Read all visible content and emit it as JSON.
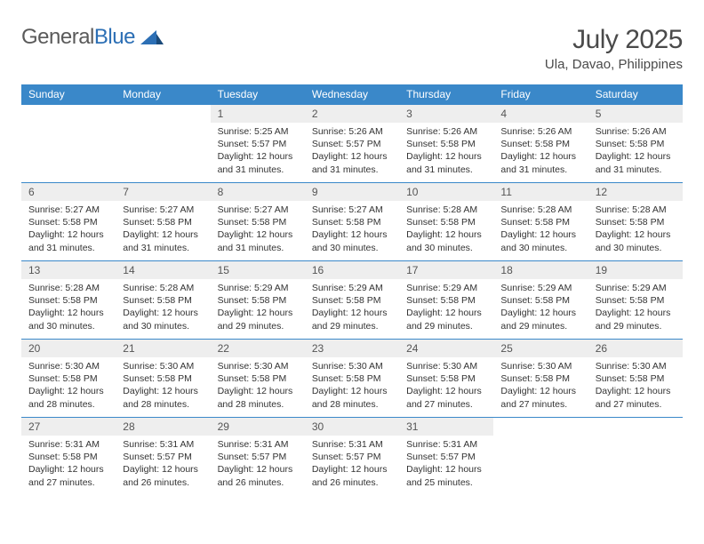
{
  "brand": {
    "part1": "General",
    "part2": "Blue"
  },
  "title": "July 2025",
  "location": "Ula, Davao, Philippines",
  "colors": {
    "header_bg": "#3a88c9",
    "header_fg": "#ffffff",
    "daynum_bg": "#eeeeee",
    "row_border": "#3a88c9",
    "text": "#333333",
    "brand_gray": "#5a5a5a",
    "brand_blue": "#2c6fb5",
    "page_bg": "#ffffff"
  },
  "typography": {
    "body_font": "Arial",
    "title_fontsize": 30,
    "location_fontsize": 15,
    "header_fontsize": 12,
    "daynum_fontsize": 12,
    "cell_fontsize": 10.5
  },
  "day_headers": [
    "Sunday",
    "Monday",
    "Tuesday",
    "Wednesday",
    "Thursday",
    "Friday",
    "Saturday"
  ],
  "weeks": [
    [
      {
        "n": "",
        "sr": "",
        "ss": "",
        "dl": ""
      },
      {
        "n": "",
        "sr": "",
        "ss": "",
        "dl": ""
      },
      {
        "n": "1",
        "sr": "Sunrise: 5:25 AM",
        "ss": "Sunset: 5:57 PM",
        "dl": "Daylight: 12 hours and 31 minutes."
      },
      {
        "n": "2",
        "sr": "Sunrise: 5:26 AM",
        "ss": "Sunset: 5:57 PM",
        "dl": "Daylight: 12 hours and 31 minutes."
      },
      {
        "n": "3",
        "sr": "Sunrise: 5:26 AM",
        "ss": "Sunset: 5:58 PM",
        "dl": "Daylight: 12 hours and 31 minutes."
      },
      {
        "n": "4",
        "sr": "Sunrise: 5:26 AM",
        "ss": "Sunset: 5:58 PM",
        "dl": "Daylight: 12 hours and 31 minutes."
      },
      {
        "n": "5",
        "sr": "Sunrise: 5:26 AM",
        "ss": "Sunset: 5:58 PM",
        "dl": "Daylight: 12 hours and 31 minutes."
      }
    ],
    [
      {
        "n": "6",
        "sr": "Sunrise: 5:27 AM",
        "ss": "Sunset: 5:58 PM",
        "dl": "Daylight: 12 hours and 31 minutes."
      },
      {
        "n": "7",
        "sr": "Sunrise: 5:27 AM",
        "ss": "Sunset: 5:58 PM",
        "dl": "Daylight: 12 hours and 31 minutes."
      },
      {
        "n": "8",
        "sr": "Sunrise: 5:27 AM",
        "ss": "Sunset: 5:58 PM",
        "dl": "Daylight: 12 hours and 31 minutes."
      },
      {
        "n": "9",
        "sr": "Sunrise: 5:27 AM",
        "ss": "Sunset: 5:58 PM",
        "dl": "Daylight: 12 hours and 30 minutes."
      },
      {
        "n": "10",
        "sr": "Sunrise: 5:28 AM",
        "ss": "Sunset: 5:58 PM",
        "dl": "Daylight: 12 hours and 30 minutes."
      },
      {
        "n": "11",
        "sr": "Sunrise: 5:28 AM",
        "ss": "Sunset: 5:58 PM",
        "dl": "Daylight: 12 hours and 30 minutes."
      },
      {
        "n": "12",
        "sr": "Sunrise: 5:28 AM",
        "ss": "Sunset: 5:58 PM",
        "dl": "Daylight: 12 hours and 30 minutes."
      }
    ],
    [
      {
        "n": "13",
        "sr": "Sunrise: 5:28 AM",
        "ss": "Sunset: 5:58 PM",
        "dl": "Daylight: 12 hours and 30 minutes."
      },
      {
        "n": "14",
        "sr": "Sunrise: 5:28 AM",
        "ss": "Sunset: 5:58 PM",
        "dl": "Daylight: 12 hours and 30 minutes."
      },
      {
        "n": "15",
        "sr": "Sunrise: 5:29 AM",
        "ss": "Sunset: 5:58 PM",
        "dl": "Daylight: 12 hours and 29 minutes."
      },
      {
        "n": "16",
        "sr": "Sunrise: 5:29 AM",
        "ss": "Sunset: 5:58 PM",
        "dl": "Daylight: 12 hours and 29 minutes."
      },
      {
        "n": "17",
        "sr": "Sunrise: 5:29 AM",
        "ss": "Sunset: 5:58 PM",
        "dl": "Daylight: 12 hours and 29 minutes."
      },
      {
        "n": "18",
        "sr": "Sunrise: 5:29 AM",
        "ss": "Sunset: 5:58 PM",
        "dl": "Daylight: 12 hours and 29 minutes."
      },
      {
        "n": "19",
        "sr": "Sunrise: 5:29 AM",
        "ss": "Sunset: 5:58 PM",
        "dl": "Daylight: 12 hours and 29 minutes."
      }
    ],
    [
      {
        "n": "20",
        "sr": "Sunrise: 5:30 AM",
        "ss": "Sunset: 5:58 PM",
        "dl": "Daylight: 12 hours and 28 minutes."
      },
      {
        "n": "21",
        "sr": "Sunrise: 5:30 AM",
        "ss": "Sunset: 5:58 PM",
        "dl": "Daylight: 12 hours and 28 minutes."
      },
      {
        "n": "22",
        "sr": "Sunrise: 5:30 AM",
        "ss": "Sunset: 5:58 PM",
        "dl": "Daylight: 12 hours and 28 minutes."
      },
      {
        "n": "23",
        "sr": "Sunrise: 5:30 AM",
        "ss": "Sunset: 5:58 PM",
        "dl": "Daylight: 12 hours and 28 minutes."
      },
      {
        "n": "24",
        "sr": "Sunrise: 5:30 AM",
        "ss": "Sunset: 5:58 PM",
        "dl": "Daylight: 12 hours and 27 minutes."
      },
      {
        "n": "25",
        "sr": "Sunrise: 5:30 AM",
        "ss": "Sunset: 5:58 PM",
        "dl": "Daylight: 12 hours and 27 minutes."
      },
      {
        "n": "26",
        "sr": "Sunrise: 5:30 AM",
        "ss": "Sunset: 5:58 PM",
        "dl": "Daylight: 12 hours and 27 minutes."
      }
    ],
    [
      {
        "n": "27",
        "sr": "Sunrise: 5:31 AM",
        "ss": "Sunset: 5:58 PM",
        "dl": "Daylight: 12 hours and 27 minutes."
      },
      {
        "n": "28",
        "sr": "Sunrise: 5:31 AM",
        "ss": "Sunset: 5:57 PM",
        "dl": "Daylight: 12 hours and 26 minutes."
      },
      {
        "n": "29",
        "sr": "Sunrise: 5:31 AM",
        "ss": "Sunset: 5:57 PM",
        "dl": "Daylight: 12 hours and 26 minutes."
      },
      {
        "n": "30",
        "sr": "Sunrise: 5:31 AM",
        "ss": "Sunset: 5:57 PM",
        "dl": "Daylight: 12 hours and 26 minutes."
      },
      {
        "n": "31",
        "sr": "Sunrise: 5:31 AM",
        "ss": "Sunset: 5:57 PM",
        "dl": "Daylight: 12 hours and 25 minutes."
      },
      {
        "n": "",
        "sr": "",
        "ss": "",
        "dl": ""
      },
      {
        "n": "",
        "sr": "",
        "ss": "",
        "dl": ""
      }
    ]
  ]
}
